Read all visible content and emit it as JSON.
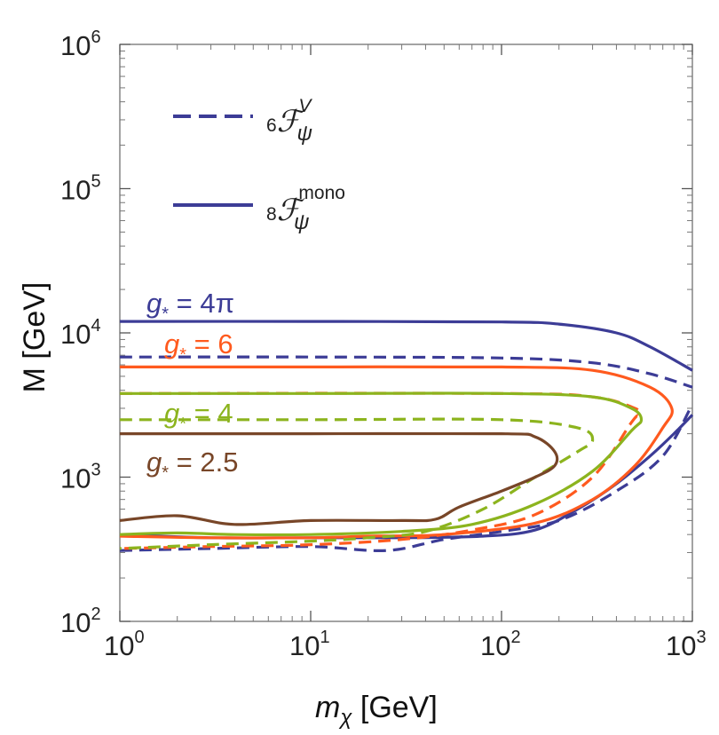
{
  "chart_data": {
    "type": "line",
    "xlabel": "m_χ  [GeV]",
    "ylabel": "M  [GeV]",
    "xscale": "log",
    "yscale": "log",
    "xlim": [
      1,
      1000
    ],
    "ylim": [
      100,
      1000000
    ],
    "x_ticks": [
      {
        "base": "10",
        "exp": "0"
      },
      {
        "base": "10",
        "exp": "1"
      },
      {
        "base": "10",
        "exp": "2"
      },
      {
        "base": "10",
        "exp": "3"
      }
    ],
    "y_ticks": [
      {
        "base": "10",
        "exp": "2"
      },
      {
        "base": "10",
        "exp": "3"
      },
      {
        "base": "10",
        "exp": "4"
      },
      {
        "base": "10",
        "exp": "5"
      },
      {
        "base": "10",
        "exp": "6"
      }
    ],
    "legend": {
      "placement": "top-left",
      "entries": [
        {
          "style": "dashed",
          "pre": "6",
          "main": "ℱ",
          "sup": "V",
          "sub": "ψ"
        },
        {
          "style": "solid",
          "pre": "8",
          "main": "ℱ",
          "sup": "mono",
          "sub": "ψ"
        }
      ]
    },
    "annotations": [
      {
        "text": "g* = 4π",
        "sym": "g",
        "sub": "*",
        "rest": " = 4π",
        "color": "#3c3c96"
      },
      {
        "text": "g* = 6",
        "sym": "g",
        "sub": "*",
        "rest": " = 6",
        "color": "#ff5a1e"
      },
      {
        "text": "g* = 4",
        "sym": "g",
        "sub": "*",
        "rest": " = 4",
        "color": "#8cb41e"
      },
      {
        "text": "g* = 2.5",
        "sym": "g",
        "sub": "*",
        "rest": " = 2.5",
        "color": "#784628"
      }
    ],
    "series": [
      {
        "name": "g* = 4π, 8F mono",
        "coupling": "4π",
        "operator": "mono",
        "style": "solid",
        "color": "#3c3c96",
        "points": [
          [
            1,
            12000
          ],
          [
            10,
            12000
          ],
          [
            100,
            11900
          ],
          [
            200,
            11500
          ],
          [
            400,
            10000
          ],
          [
            600,
            8000
          ],
          [
            1000,
            5500
          ]
        ]
      },
      {
        "name": "g* = 4π, 6F V",
        "coupling": "4π",
        "operator": "V",
        "style": "dashed",
        "color": "#3c3c96",
        "points": [
          [
            1,
            6800
          ],
          [
            10,
            6800
          ],
          [
            100,
            6700
          ],
          [
            300,
            6200
          ],
          [
            600,
            5200
          ],
          [
            1000,
            4200
          ]
        ]
      },
      {
        "name": "g* = 4π lower, 8F mono",
        "coupling": "4π",
        "operator": "mono",
        "style": "solid",
        "color": "#3c3c96",
        "points": [
          [
            1,
            400
          ],
          [
            3,
            380
          ],
          [
            10,
            380
          ],
          [
            30,
            380
          ],
          [
            80,
            390
          ],
          [
            150,
            430
          ],
          [
            250,
            600
          ],
          [
            400,
            900
          ],
          [
            600,
            1400
          ],
          [
            800,
            2000
          ],
          [
            1000,
            2700
          ]
        ]
      },
      {
        "name": "g* = 4π lower, 6F V",
        "coupling": "4π",
        "operator": "V",
        "style": "dashed",
        "color": "#3c3c96",
        "points": [
          [
            1,
            310
          ],
          [
            3,
            320
          ],
          [
            10,
            330
          ],
          [
            25,
            310
          ],
          [
            50,
            370
          ],
          [
            100,
            420
          ],
          [
            200,
            500
          ],
          [
            400,
            800
          ],
          [
            700,
            1400
          ],
          [
            1000,
            3200
          ]
        ]
      },
      {
        "name": "g* = 6, 8F mono",
        "coupling": "6",
        "operator": "mono",
        "style": "solid",
        "color": "#ff5a1e",
        "points": [
          [
            1,
            5800
          ],
          [
            10,
            5800
          ],
          [
            100,
            5800
          ],
          [
            300,
            5500
          ],
          [
            600,
            4200
          ],
          [
            780,
            3000
          ],
          [
            700,
            2200
          ],
          [
            500,
            1200
          ],
          [
            300,
            700
          ],
          [
            150,
            480
          ],
          [
            50,
            400
          ],
          [
            20,
            390
          ],
          [
            10,
            380
          ],
          [
            3,
            380
          ],
          [
            1,
            390
          ]
        ]
      },
      {
        "name": "g* = 6, 6F V",
        "coupling": "6",
        "operator": "V",
        "style": "dashed",
        "color": "#ff5a1e",
        "points": [
          [
            1,
            3800
          ],
          [
            100,
            3800
          ],
          [
            300,
            3600
          ],
          [
            500,
            3000
          ],
          [
            520,
            2700
          ],
          [
            480,
            2400
          ],
          [
            300,
            1000
          ],
          [
            150,
            550
          ],
          [
            70,
            430
          ],
          [
            30,
            370
          ],
          [
            10,
            340
          ],
          [
            3,
            330
          ],
          [
            1,
            320
          ]
        ]
      },
      {
        "name": "g* = 4, 8F mono",
        "coupling": "4",
        "operator": "mono",
        "style": "solid",
        "color": "#8cb41e",
        "points": [
          [
            1,
            3800
          ],
          [
            10,
            3800
          ],
          [
            100,
            3800
          ],
          [
            300,
            3600
          ],
          [
            480,
            3000
          ],
          [
            540,
            2500
          ],
          [
            480,
            2100
          ],
          [
            300,
            1100
          ],
          [
            150,
            650
          ],
          [
            70,
            470
          ],
          [
            30,
            420
          ],
          [
            10,
            400
          ],
          [
            4,
            400
          ],
          [
            2,
            410
          ],
          [
            1,
            400
          ]
        ]
      },
      {
        "name": "g* = 4, 6F V",
        "coupling": "4",
        "operator": "V",
        "style": "dashed",
        "color": "#8cb41e",
        "points": [
          [
            1,
            2500
          ],
          [
            10,
            2500
          ],
          [
            100,
            2500
          ],
          [
            250,
            2200
          ],
          [
            300,
            1800
          ],
          [
            250,
            1500
          ],
          [
            150,
            1000
          ],
          [
            80,
            600
          ],
          [
            40,
            420
          ],
          [
            20,
            380
          ],
          [
            10,
            360
          ],
          [
            3,
            340
          ],
          [
            1,
            320
          ]
        ]
      },
      {
        "name": "g* = 2.5, 8F mono",
        "coupling": "2.5",
        "operator": "mono",
        "style": "solid",
        "color": "#784628",
        "points": [
          [
            1,
            2000
          ],
          [
            10,
            2000
          ],
          [
            100,
            2000
          ],
          [
            150,
            1900
          ],
          [
            190,
            1500
          ],
          [
            190,
            1200
          ],
          [
            150,
            1000
          ],
          [
            100,
            800
          ],
          [
            60,
            620
          ],
          [
            45,
            510
          ],
          [
            30,
            500
          ],
          [
            10,
            500
          ],
          [
            4,
            470
          ],
          [
            2,
            540
          ],
          [
            1,
            500
          ]
        ]
      }
    ]
  }
}
